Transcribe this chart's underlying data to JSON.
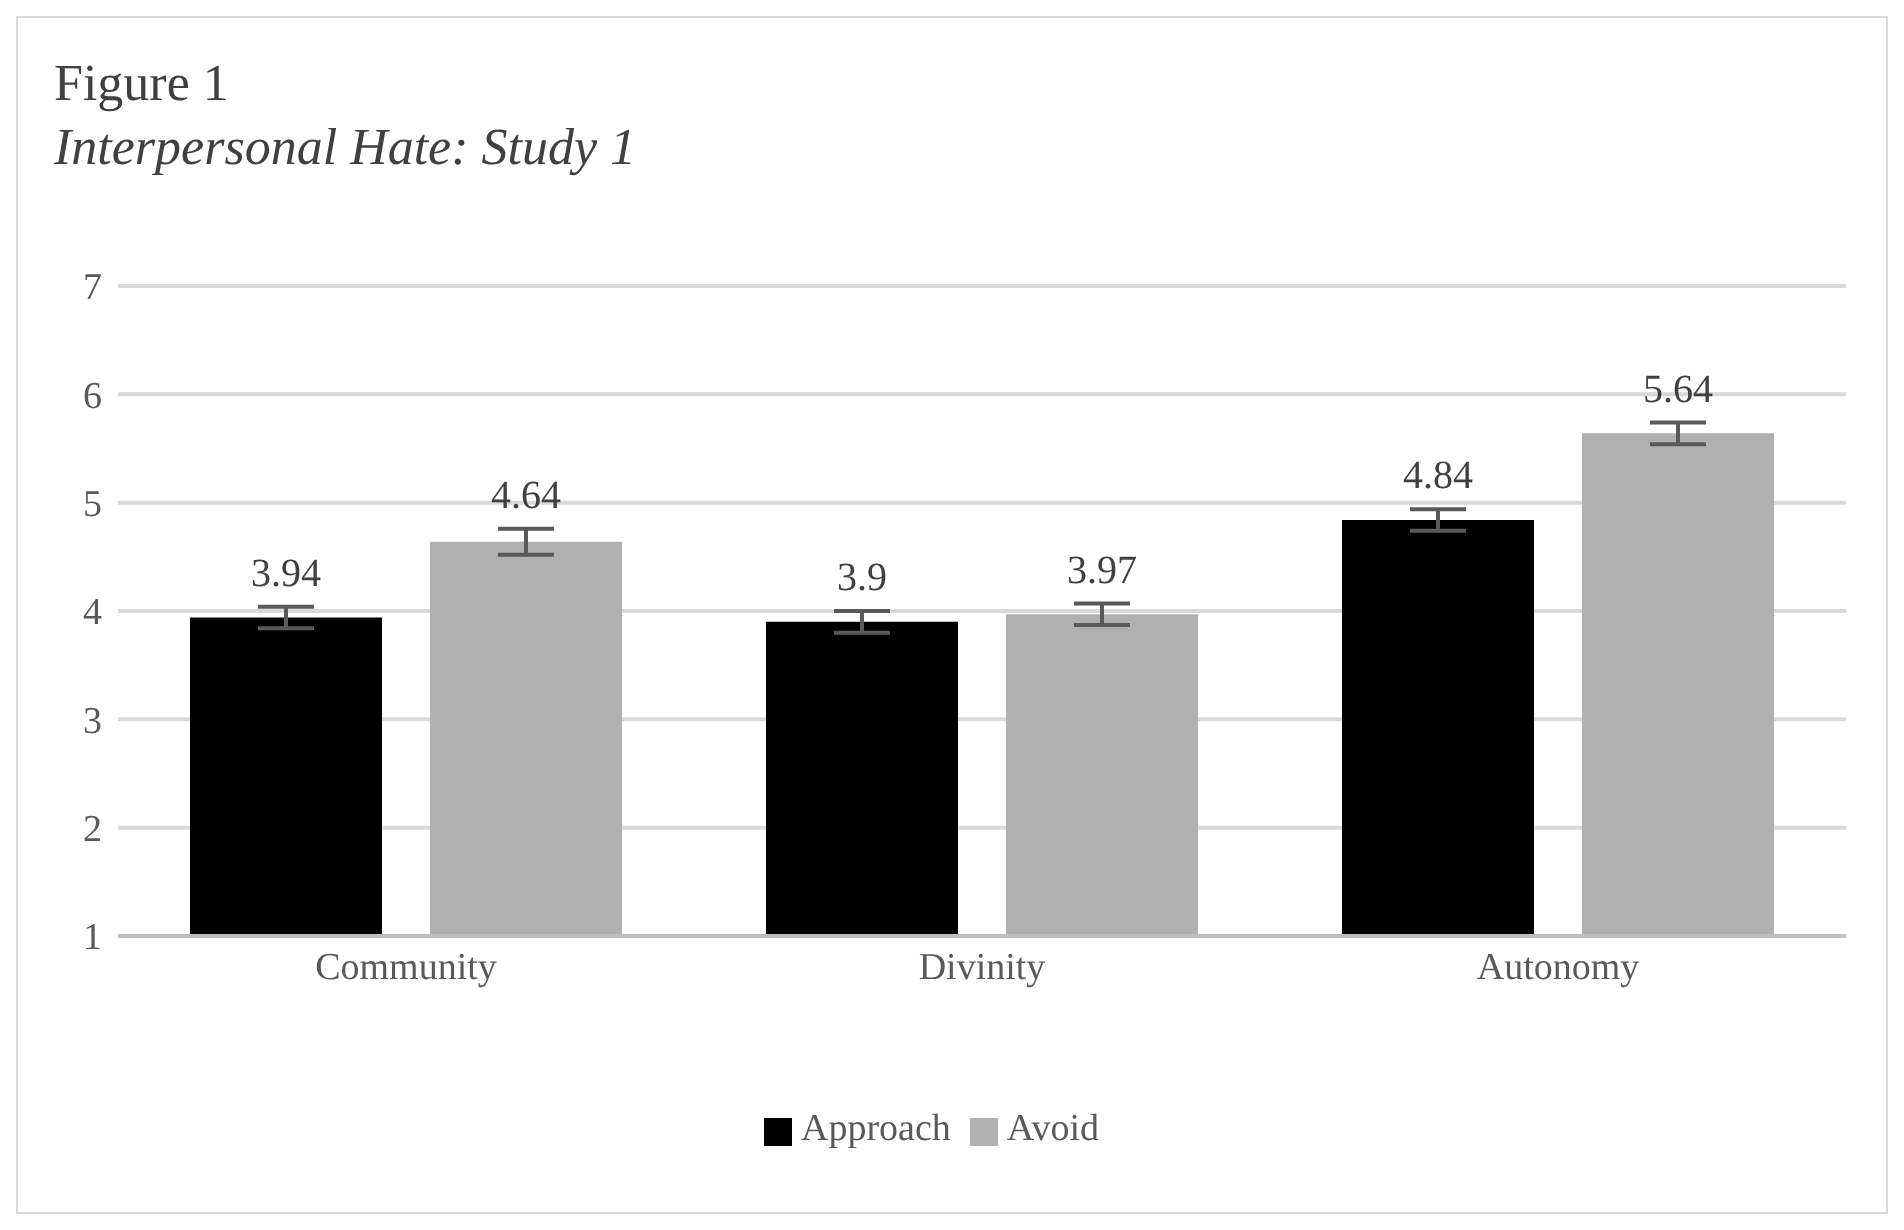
{
  "chart_data": {
    "type": "bar",
    "title": "Figure 1",
    "subtitle": "Interpersonal Hate: Study 1",
    "categories": [
      "Community",
      "Divinity",
      "Autonomy"
    ],
    "series": [
      {
        "name": "Approach",
        "color": "#000000",
        "values": [
          3.94,
          3.9,
          4.84
        ],
        "errors": [
          0.1,
          0.1,
          0.1
        ]
      },
      {
        "name": "Avoid",
        "color": "#b0b0b0",
        "values": [
          4.64,
          3.97,
          5.64
        ],
        "errors": [
          0.12,
          0.1,
          0.1
        ]
      }
    ],
    "ylim": [
      1,
      7
    ],
    "yticks": [
      1,
      2,
      3,
      4,
      5,
      6,
      7
    ],
    "grid": "y",
    "legend": "bottom",
    "data_labels": true
  }
}
